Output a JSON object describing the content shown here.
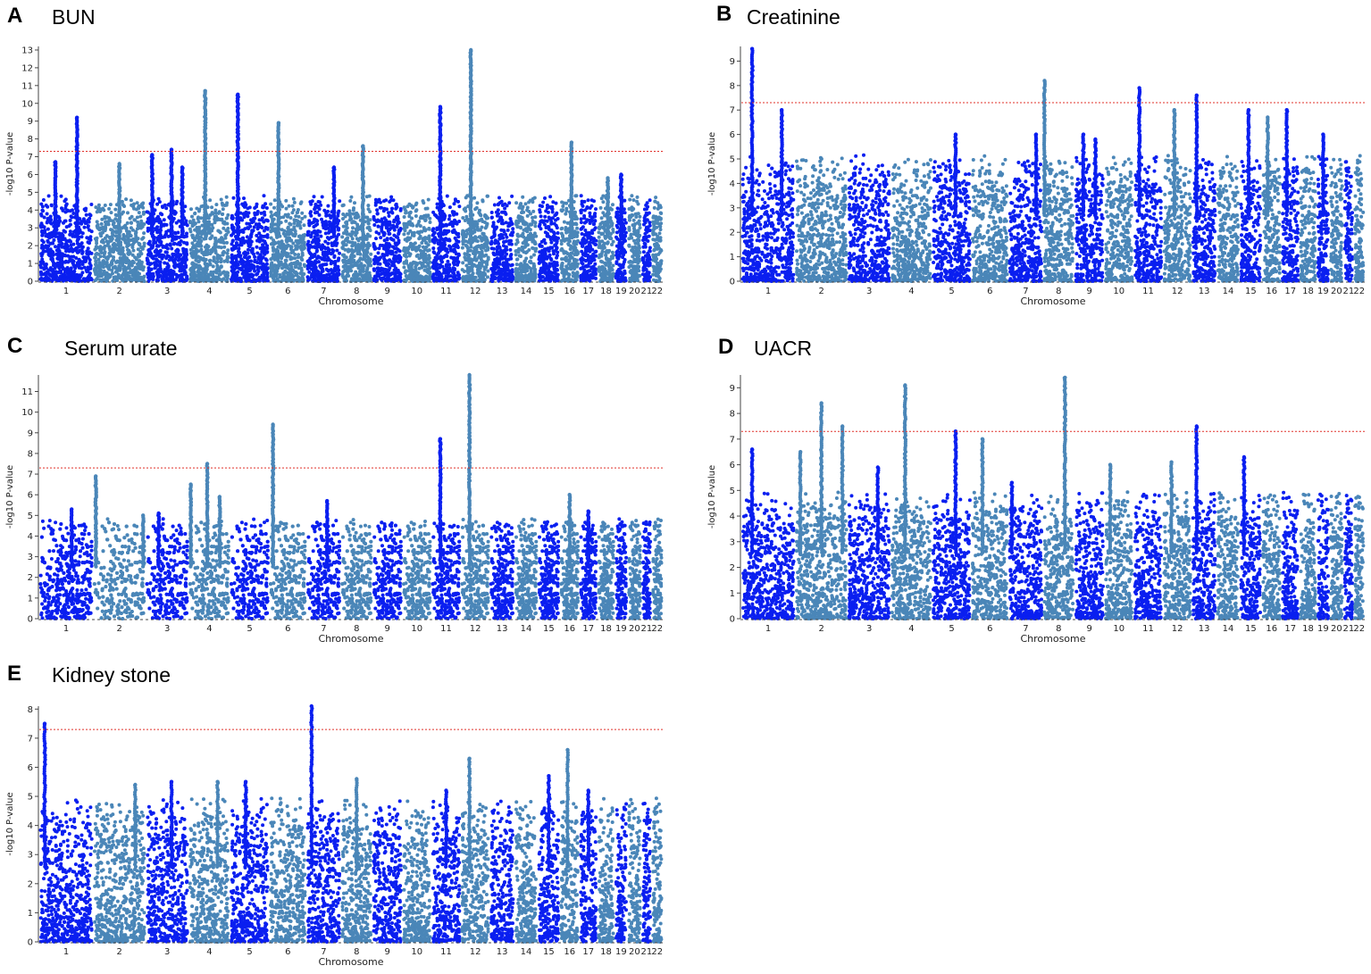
{
  "colors": {
    "odd_chromosome": "#0a1ff0",
    "even_chromosome": "#4a86b8",
    "threshold_line": "#e0302a"
  },
  "chart_data": [
    {
      "id": "A",
      "title": "BUN",
      "type": "scatter",
      "xlabel": "Chromosome",
      "ylabel": "-log10 P-value",
      "ylim": [
        0,
        13.2
      ],
      "yticks": [
        0,
        1,
        2,
        3,
        4,
        5,
        6,
        7,
        8,
        9,
        10,
        11,
        12,
        13
      ],
      "threshold": 7.3,
      "baseline": 4.2,
      "chromosomes": [
        "1",
        "2",
        "3",
        "4",
        "5",
        "6",
        "7",
        "8",
        "9",
        "10",
        "11",
        "12",
        "13",
        "14",
        "15",
        "16",
        "17",
        "18",
        "19",
        "20",
        "21",
        "22"
      ],
      "peaks": [
        {
          "chrom": "1",
          "pos": 0.7,
          "value": 9.2
        },
        {
          "chrom": "1",
          "pos": 0.3,
          "value": 6.7
        },
        {
          "chrom": "2",
          "pos": 0.5,
          "value": 6.6
        },
        {
          "chrom": "3",
          "pos": 0.15,
          "value": 7.1
        },
        {
          "chrom": "3",
          "pos": 0.6,
          "value": 7.4
        },
        {
          "chrom": "3",
          "pos": 0.85,
          "value": 6.4
        },
        {
          "chrom": "4",
          "pos": 0.4,
          "value": 10.7
        },
        {
          "chrom": "5",
          "pos": 0.2,
          "value": 10.5
        },
        {
          "chrom": "6",
          "pos": 0.25,
          "value": 8.9
        },
        {
          "chrom": "7",
          "pos": 0.8,
          "value": 6.4
        },
        {
          "chrom": "8",
          "pos": 0.7,
          "value": 7.6
        },
        {
          "chrom": "11",
          "pos": 0.3,
          "value": 9.8
        },
        {
          "chrom": "12",
          "pos": 0.35,
          "value": 13.0
        },
        {
          "chrom": "16",
          "pos": 0.6,
          "value": 7.8
        },
        {
          "chrom": "18",
          "pos": 0.6,
          "value": 5.8
        },
        {
          "chrom": "19",
          "pos": 0.5,
          "value": 6.0
        }
      ]
    },
    {
      "id": "B",
      "title": "Creatinine",
      "type": "scatter",
      "xlabel": "Chromosome",
      "ylabel": "-log10 P-value",
      "ylim": [
        0,
        9.6
      ],
      "yticks": [
        0,
        1,
        2,
        3,
        4,
        5,
        6,
        7,
        8,
        9
      ],
      "threshold": 7.3,
      "baseline": 4.5,
      "chromosomes": [
        "1",
        "2",
        "3",
        "4",
        "5",
        "6",
        "7",
        "8",
        "9",
        "10",
        "11",
        "12",
        "13",
        "14",
        "15",
        "16",
        "17",
        "18",
        "19",
        "20",
        "21",
        "22"
      ],
      "peaks": [
        {
          "chrom": "1",
          "pos": 0.2,
          "value": 9.5
        },
        {
          "chrom": "1",
          "pos": 0.75,
          "value": 7.0
        },
        {
          "chrom": "5",
          "pos": 0.6,
          "value": 6.0
        },
        {
          "chrom": "7",
          "pos": 0.8,
          "value": 6.0
        },
        {
          "chrom": "8",
          "pos": 0.05,
          "value": 8.2
        },
        {
          "chrom": "9",
          "pos": 0.3,
          "value": 6.0
        },
        {
          "chrom": "9",
          "pos": 0.7,
          "value": 5.8
        },
        {
          "chrom": "11",
          "pos": 0.2,
          "value": 7.9
        },
        {
          "chrom": "12",
          "pos": 0.4,
          "value": 7.0
        },
        {
          "chrom": "13",
          "pos": 0.2,
          "value": 7.6
        },
        {
          "chrom": "15",
          "pos": 0.4,
          "value": 7.0
        },
        {
          "chrom": "16",
          "pos": 0.3,
          "value": 6.7
        },
        {
          "chrom": "17",
          "pos": 0.3,
          "value": 7.0
        },
        {
          "chrom": "19",
          "pos": 0.5,
          "value": 6.0
        }
      ]
    },
    {
      "id": "C",
      "title": "Serum urate",
      "type": "scatter",
      "xlabel": "Chromosome",
      "ylabel": "-log10 P-value",
      "ylim": [
        0,
        11.8
      ],
      "yticks": [
        0,
        1,
        2,
        3,
        4,
        5,
        6,
        7,
        8,
        9,
        10,
        11
      ],
      "threshold": 7.3,
      "baseline": 4.2,
      "chromosomes": [
        "1",
        "2",
        "3",
        "4",
        "5",
        "6",
        "7",
        "8",
        "9",
        "10",
        "11",
        "12",
        "13",
        "14",
        "15",
        "16",
        "17",
        "18",
        "19",
        "20",
        "21",
        "22"
      ],
      "peaks": [
        {
          "chrom": "1",
          "pos": 0.6,
          "value": 5.3
        },
        {
          "chrom": "2",
          "pos": 0.05,
          "value": 6.9
        },
        {
          "chrom": "2",
          "pos": 0.95,
          "value": 5.0
        },
        {
          "chrom": "3",
          "pos": 0.3,
          "value": 5.1
        },
        {
          "chrom": "4",
          "pos": 0.05,
          "value": 6.5
        },
        {
          "chrom": "4",
          "pos": 0.45,
          "value": 7.5
        },
        {
          "chrom": "4",
          "pos": 0.75,
          "value": 5.9
        },
        {
          "chrom": "6",
          "pos": 0.1,
          "value": 9.4
        },
        {
          "chrom": "7",
          "pos": 0.6,
          "value": 5.7
        },
        {
          "chrom": "11",
          "pos": 0.3,
          "value": 8.7
        },
        {
          "chrom": "12",
          "pos": 0.3,
          "value": 11.8
        },
        {
          "chrom": "16",
          "pos": 0.5,
          "value": 6.0
        },
        {
          "chrom": "17",
          "pos": 0.5,
          "value": 5.2
        }
      ]
    },
    {
      "id": "D",
      "title": "UACR",
      "type": "scatter",
      "xlabel": "Chromosome",
      "ylabel": "-log10 P-value",
      "ylim": [
        0,
        9.5
      ],
      "yticks": [
        0,
        1,
        2,
        3,
        4,
        5,
        6,
        7,
        8,
        9
      ],
      "threshold": 7.3,
      "baseline": 4.3,
      "chromosomes": [
        "1",
        "2",
        "3",
        "4",
        "5",
        "6",
        "7",
        "8",
        "9",
        "10",
        "11",
        "12",
        "13",
        "14",
        "15",
        "16",
        "17",
        "18",
        "19",
        "20",
        "21",
        "22"
      ],
      "peaks": [
        {
          "chrom": "1",
          "pos": 0.2,
          "value": 6.6
        },
        {
          "chrom": "2",
          "pos": 0.1,
          "value": 6.5
        },
        {
          "chrom": "2",
          "pos": 0.5,
          "value": 8.4
        },
        {
          "chrom": "2",
          "pos": 0.9,
          "value": 7.5
        },
        {
          "chrom": "3",
          "pos": 0.7,
          "value": 5.9
        },
        {
          "chrom": "4",
          "pos": 0.35,
          "value": 9.1
        },
        {
          "chrom": "5",
          "pos": 0.6,
          "value": 7.3
        },
        {
          "chrom": "6",
          "pos": 0.3,
          "value": 7.0
        },
        {
          "chrom": "7",
          "pos": 0.1,
          "value": 5.3
        },
        {
          "chrom": "8",
          "pos": 0.7,
          "value": 9.4
        },
        {
          "chrom": "10",
          "pos": 0.2,
          "value": 6.0
        },
        {
          "chrom": "12",
          "pos": 0.3,
          "value": 6.1
        },
        {
          "chrom": "13",
          "pos": 0.2,
          "value": 7.5
        },
        {
          "chrom": "15",
          "pos": 0.2,
          "value": 6.3
        }
      ]
    },
    {
      "id": "E",
      "title": "Kidney stone",
      "type": "scatter",
      "xlabel": "Chromosome",
      "ylabel": "-log10 P-value",
      "ylim": [
        0,
        8.1
      ],
      "yticks": [
        0,
        1,
        2,
        3,
        4,
        5,
        6,
        7,
        8
      ],
      "threshold": 7.3,
      "baseline": 4.3,
      "chromosomes": [
        "1",
        "2",
        "3",
        "4",
        "5",
        "6",
        "7",
        "8",
        "9",
        "10",
        "11",
        "12",
        "13",
        "14",
        "15",
        "16",
        "17",
        "18",
        "19",
        "20",
        "21",
        "22"
      ],
      "peaks": [
        {
          "chrom": "1",
          "pos": 0.1,
          "value": 7.5
        },
        {
          "chrom": "2",
          "pos": 0.8,
          "value": 5.4
        },
        {
          "chrom": "3",
          "pos": 0.6,
          "value": 5.5
        },
        {
          "chrom": "4",
          "pos": 0.7,
          "value": 5.5
        },
        {
          "chrom": "5",
          "pos": 0.4,
          "value": 5.5
        },
        {
          "chrom": "7",
          "pos": 0.15,
          "value": 8.1
        },
        {
          "chrom": "8",
          "pos": 0.5,
          "value": 5.6
        },
        {
          "chrom": "11",
          "pos": 0.5,
          "value": 5.2
        },
        {
          "chrom": "12",
          "pos": 0.3,
          "value": 6.3
        },
        {
          "chrom": "15",
          "pos": 0.5,
          "value": 5.7
        },
        {
          "chrom": "16",
          "pos": 0.4,
          "value": 6.6
        },
        {
          "chrom": "17",
          "pos": 0.5,
          "value": 5.2
        }
      ]
    }
  ]
}
